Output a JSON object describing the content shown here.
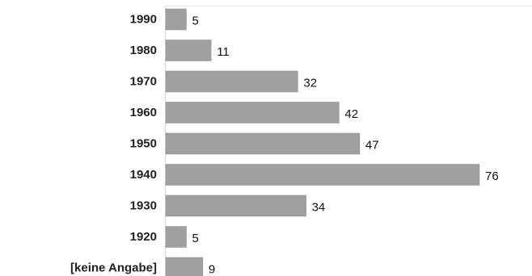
{
  "colors": {
    "bar_fill": "#a0a0a0",
    "bar_stroke": "#8c8c8c",
    "axis_line": "#d4d4d4",
    "frame_line": "#e6e6e6"
  },
  "chart_data": {
    "type": "bar",
    "orientation": "horizontal",
    "title": "",
    "xlabel": "",
    "ylabel": "",
    "categories": [
      "1990",
      "1980",
      "1970",
      "1960",
      "1950",
      "1940",
      "1930",
      "1920",
      "[keine Angabe]"
    ],
    "values": [
      5,
      11,
      32,
      42,
      47,
      76,
      34,
      5,
      9
    ],
    "xlim": [
      0,
      76
    ],
    "data_labels": true,
    "grid": false,
    "legend": "none"
  }
}
